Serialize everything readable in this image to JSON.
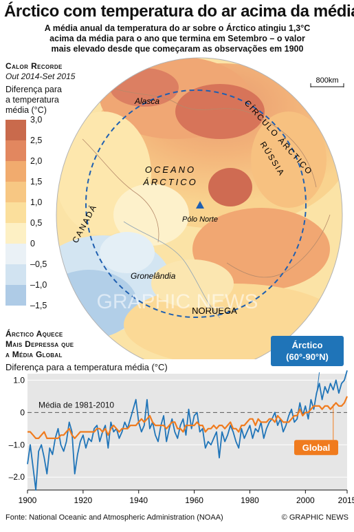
{
  "header": {
    "title": "Árctico com temperatura do ar acima da média",
    "subtitle_lines": [
      "A média anual da temperatura do ar sobre o Árctico atingiu 1,3°C",
      "acima da média para o ano que termina em Setembro – o valor",
      "mais elevado desde que começaram as observações em 1900"
    ]
  },
  "map": {
    "heading": "Calor Recorde",
    "period": "Out 2014-Set 2015",
    "legend_title_lines": [
      "Diferença para",
      "a temperatura",
      "média (°C)"
    ],
    "scale_labels": [
      "3,0",
      "2,5",
      "2,0",
      "1,5",
      "1,0",
      "0,5",
      "0",
      "–0,5",
      "–1,0",
      "–1,5"
    ],
    "scale_colors": [
      "#c96a4c",
      "#e2875f",
      "#f1ab6e",
      "#f7c783",
      "#fbdf9c",
      "#fdf0c4",
      "#eaf1f6",
      "#d1e3f1",
      "#aecbe6"
    ],
    "scale_bar": "800km",
    "labels": {
      "alaska": "Alasca",
      "canada": "CANADÁ",
      "russia": "RÚSSIA",
      "arctic_circle": "CÍRCULO ÁRCTICO",
      "ocean_1": "OCEANO",
      "ocean_2": "ÁRCTICO",
      "north_pole": "Pólo Norte",
      "greenland": "Gronelândia",
      "norway": "NORUEGA"
    },
    "watermark": "GRAPHIC NEWS"
  },
  "chart_heading_lines": [
    "Árctico Aquece",
    "Mais Depressa que",
    "a Média Global"
  ],
  "chart_data": {
    "type": "line",
    "ylabel": "Diferença para a temperatura média (°C)",
    "ylim": [
      -2.4,
      1.2
    ],
    "yticks": [
      1.0,
      0,
      -1.0,
      -2.0
    ],
    "ytick_labels": [
      "1.0",
      "0",
      "–1.0",
      "–2.0"
    ],
    "xlim": [
      1900,
      2015
    ],
    "xticks": [
      1900,
      1920,
      1940,
      1960,
      1980,
      2000,
      2015
    ],
    "xtick_labels": [
      "1900",
      "1920",
      "1940",
      "1960",
      "1980",
      "2000",
      "2015"
    ],
    "grid": true,
    "baseline_label": "Média de 1981-2010",
    "series": [
      {
        "name": "Árctico (60°-90°N)",
        "color": "#1f74b8",
        "years_start": 1900,
        "values": [
          -1.6,
          -1.0,
          -1.7,
          -2.4,
          -1.2,
          -1.0,
          -1.4,
          -1.9,
          -1.1,
          -1.3,
          -0.8,
          -0.5,
          -1.0,
          -1.2,
          -0.9,
          -0.3,
          -0.6,
          -1.9,
          -1.3,
          -0.9,
          -0.7,
          -1.1,
          -0.8,
          -0.9,
          -0.5,
          -0.4,
          -0.9,
          -0.6,
          -0.4,
          -1.1,
          -0.3,
          -0.6,
          -0.5,
          -0.8,
          -0.6,
          -0.3,
          -0.5,
          -0.2,
          0.1,
          0.4,
          -0.3,
          -0.6,
          -0.4,
          0.4,
          -0.5,
          -0.3,
          -0.7,
          -0.9,
          -0.4,
          -0.1,
          -0.9,
          -0.5,
          -0.2,
          -0.6,
          -0.8,
          -0.4,
          -0.2,
          -0.7,
          0.1,
          -0.5,
          -0.1,
          0.0,
          -0.6,
          -0.5,
          -1.1,
          -0.9,
          -1.0,
          -0.8,
          -0.6,
          -1.4,
          -0.6,
          -0.9,
          -0.7,
          -0.4,
          -0.6,
          -0.9,
          -1.1,
          -0.5,
          -0.8,
          -0.6,
          -0.4,
          -0.8,
          -0.5,
          -0.6,
          -0.3,
          -0.8,
          -0.5,
          -0.3,
          -0.2,
          0.0,
          -0.4,
          -0.2,
          -0.6,
          -0.4,
          -0.1,
          0.1,
          -0.3,
          -0.2,
          0.3,
          -0.1,
          0.2,
          -0.2,
          0.4,
          0.1,
          0.6,
          0.9,
          0.4,
          0.8,
          0.6,
          0.9,
          0.7,
          1.0,
          0.6,
          0.9,
          1.0,
          1.3
        ]
      },
      {
        "name": "Global",
        "color": "#f07b1e",
        "years_start": 1900,
        "values": [
          -0.6,
          -0.6,
          -0.7,
          -0.8,
          -0.8,
          -0.7,
          -0.6,
          -0.8,
          -0.8,
          -0.8,
          -0.8,
          -0.8,
          -0.7,
          -0.7,
          -0.6,
          -0.5,
          -0.7,
          -0.8,
          -0.7,
          -0.6,
          -0.6,
          -0.6,
          -0.6,
          -0.6,
          -0.6,
          -0.5,
          -0.5,
          -0.6,
          -0.5,
          -0.7,
          -0.5,
          -0.4,
          -0.5,
          -0.6,
          -0.5,
          -0.5,
          -0.5,
          -0.4,
          -0.4,
          -0.4,
          -0.3,
          -0.2,
          -0.3,
          -0.2,
          -0.1,
          -0.3,
          -0.4,
          -0.4,
          -0.4,
          -0.4,
          -0.5,
          -0.4,
          -0.3,
          -0.3,
          -0.5,
          -0.5,
          -0.6,
          -0.4,
          -0.4,
          -0.4,
          -0.4,
          -0.3,
          -0.4,
          -0.4,
          -0.6,
          -0.5,
          -0.5,
          -0.4,
          -0.5,
          -0.4,
          -0.4,
          -0.5,
          -0.4,
          -0.3,
          -0.5,
          -0.5,
          -0.6,
          -0.4,
          -0.4,
          -0.3,
          -0.2,
          -0.2,
          -0.4,
          -0.2,
          -0.3,
          -0.3,
          -0.3,
          -0.2,
          -0.2,
          -0.3,
          -0.1,
          -0.2,
          -0.3,
          -0.3,
          -0.3,
          -0.2,
          -0.1,
          -0.1,
          0.1,
          -0.1,
          0.0,
          0.0,
          0.1,
          0.2,
          0.2,
          0.2,
          0.1,
          0.2,
          0.2,
          0.1,
          0.2,
          0.3,
          0.2,
          0.2,
          0.3,
          0.5
        ]
      }
    ],
    "callouts": {
      "arctic_lines": [
        "Árctico",
        "(60°-90°N)"
      ],
      "global": "Global"
    }
  },
  "footer": {
    "source": "Fonte: National Oceanic and Atmospheric Administration (NOAA)",
    "credit": "© GRAPHIC NEWS"
  }
}
